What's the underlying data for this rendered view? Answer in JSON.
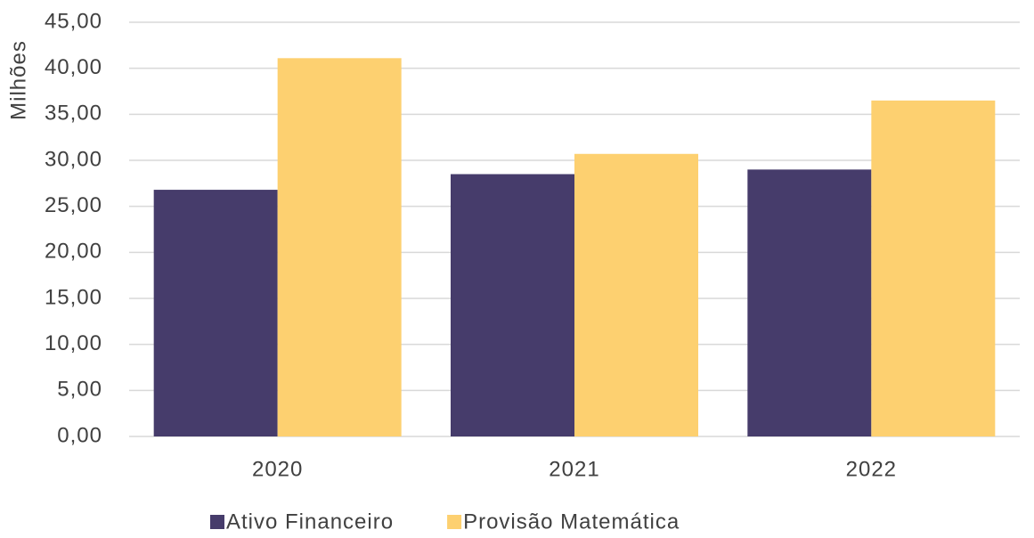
{
  "chart_data": {
    "type": "bar",
    "y_label": "Milhões",
    "categories": [
      "2020",
      "2021",
      "2022"
    ],
    "series": [
      {
        "name": "Ativo Financeiro",
        "color": "#463c6b",
        "values": [
          26.8,
          28.5,
          29.0
        ]
      },
      {
        "name": "Provisão Matemática",
        "color": "#fdd070",
        "values": [
          41.1,
          30.7,
          36.5
        ]
      }
    ],
    "ylim": [
      0,
      45
    ],
    "yticks": [
      {
        "value": 0,
        "label": "0,00"
      },
      {
        "value": 5,
        "label": "5,00"
      },
      {
        "value": 10,
        "label": "10,00"
      },
      {
        "value": 15,
        "label": "15,00"
      },
      {
        "value": 20,
        "label": "20,00"
      },
      {
        "value": 25,
        "label": "25,00"
      },
      {
        "value": 30,
        "label": "30,00"
      },
      {
        "value": 35,
        "label": "35,00"
      },
      {
        "value": 40,
        "label": "40,00"
      },
      {
        "value": 45,
        "label": "45,00"
      }
    ],
    "grid": true,
    "legend": "bottom"
  }
}
